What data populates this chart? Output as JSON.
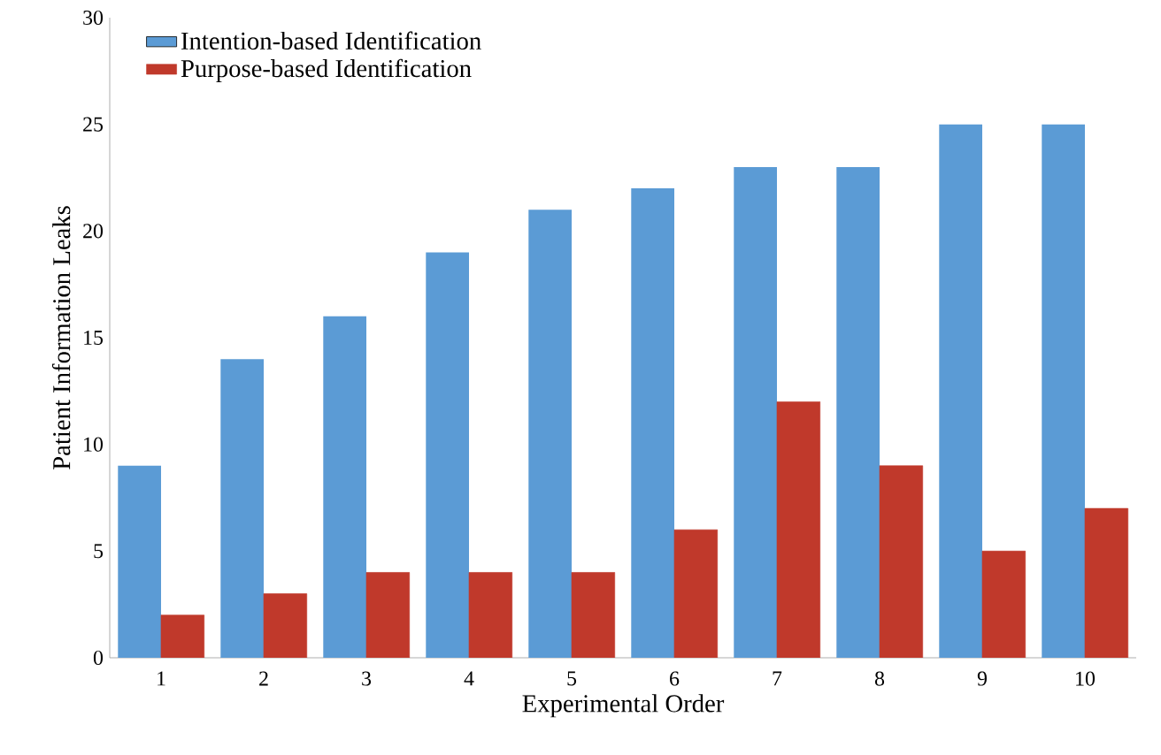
{
  "chart_data": {
    "type": "bar",
    "xlabel": "Experimental Order",
    "ylabel": "Patient Information Leaks",
    "categories": [
      "1",
      "2",
      "3",
      "4",
      "5",
      "6",
      "7",
      "8",
      "9",
      "10"
    ],
    "series": [
      {
        "name": "Intention-based Identification",
        "color": "#5b9bd5",
        "values": [
          9,
          14,
          16,
          19,
          21,
          22,
          23,
          23,
          25,
          25
        ]
      },
      {
        "name": "Purpose-based Identification",
        "color": "#c0392b",
        "values": [
          2,
          3,
          4,
          4,
          4,
          6,
          12,
          9,
          5,
          7
        ]
      }
    ],
    "ylim": [
      0,
      30
    ],
    "yticks": [
      0,
      5,
      10,
      15,
      20,
      25,
      30
    ],
    "legend": "top left"
  }
}
